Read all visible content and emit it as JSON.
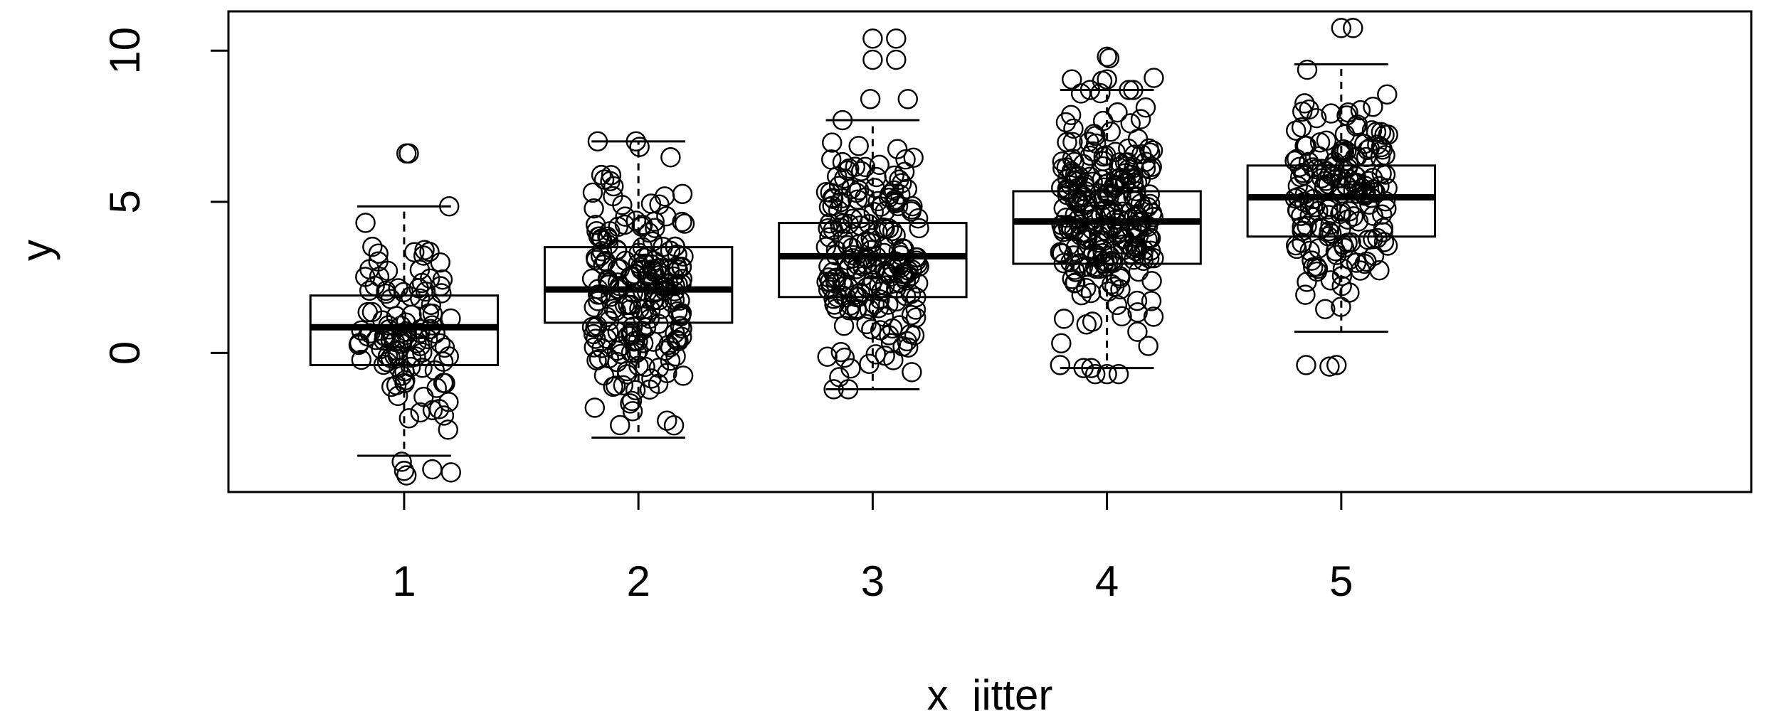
{
  "chart_data": {
    "type": "boxplot",
    "xlabel": "x_jitter",
    "ylabel": "y",
    "categories": [
      "1",
      "2",
      "3",
      "4",
      "5"
    ],
    "y_ticks": [
      0,
      5,
      10
    ],
    "y_tick_labels": [
      "0",
      "5",
      "10"
    ],
    "xlim": [
      0.25,
      6.75
    ],
    "ylim": [
      -4.6,
      11.3
    ],
    "grid": false,
    "legend": "none",
    "boxes": [
      {
        "category": "1",
        "whisker_low": -3.4,
        "q1": -0.4,
        "median": 0.85,
        "q3": 1.9,
        "whisker_high": 4.85
      },
      {
        "category": "2",
        "whisker_low": -2.8,
        "q1": 1.0,
        "median": 2.1,
        "q3": 3.5,
        "whisker_high": 7.0
      },
      {
        "category": "3",
        "whisker_low": -1.2,
        "q1": 1.85,
        "median": 3.2,
        "q3": 4.3,
        "whisker_high": 7.7
      },
      {
        "category": "4",
        "whisker_low": -0.5,
        "q1": 2.95,
        "median": 4.35,
        "q3": 5.35,
        "whisker_high": 8.7
      },
      {
        "category": "5",
        "whisker_low": 0.7,
        "q1": 3.85,
        "median": 5.15,
        "q3": 6.2,
        "whisker_high": 9.55
      }
    ],
    "outliers": [
      {
        "x": 1.01,
        "y": 6.6
      },
      {
        "x": 1.02,
        "y": 6.6
      },
      {
        "x": 0.99,
        "y": -3.6
      },
      {
        "x": 1.0,
        "y": -3.9
      },
      {
        "x": 1.01,
        "y": -4.05
      },
      {
        "x": 1.12,
        "y": -3.85
      },
      {
        "x": 1.2,
        "y": -3.95
      },
      {
        "x": 3.0,
        "y": 10.4
      },
      {
        "x": 3.1,
        "y": 10.4
      },
      {
        "x": 3.0,
        "y": 9.7
      },
      {
        "x": 3.1,
        "y": 9.7
      },
      {
        "x": 3.15,
        "y": 8.4
      },
      {
        "x": 2.99,
        "y": 8.4
      },
      {
        "x": 4.0,
        "y": 9.8
      },
      {
        "x": 4.01,
        "y": 9.75
      },
      {
        "x": 4.2,
        "y": 9.1
      },
      {
        "x": 3.85,
        "y": 9.05
      },
      {
        "x": 3.98,
        "y": 9.0
      },
      {
        "x": 4.0,
        "y": 9.05
      },
      {
        "x": 3.95,
        "y": -0.7
      },
      {
        "x": 4.0,
        "y": -0.7
      },
      {
        "x": 4.05,
        "y": -0.7
      },
      {
        "x": 3.9,
        "y": -0.5
      },
      {
        "x": 3.8,
        "y": -0.4
      },
      {
        "x": 5.05,
        "y": 10.75
      },
      {
        "x": 5.0,
        "y": 10.75
      },
      {
        "x": 4.85,
        "y": -0.4
      },
      {
        "x": 4.95,
        "y": -0.45
      },
      {
        "x": 4.98,
        "y": -0.4
      }
    ]
  }
}
